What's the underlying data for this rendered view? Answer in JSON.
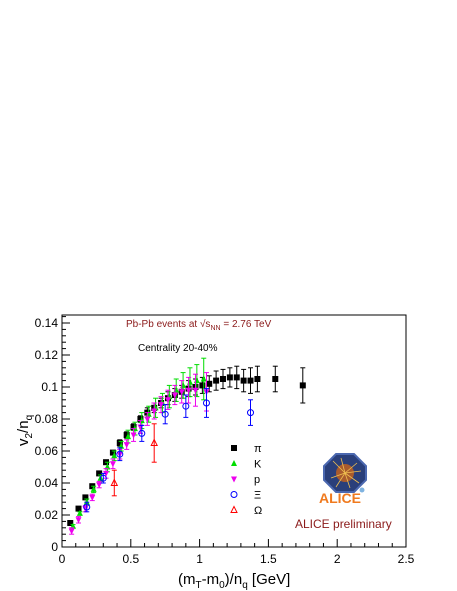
{
  "chart_data": {
    "type": "scatter",
    "title": "",
    "xlabel_parts": [
      "(m",
      "T",
      "-m",
      "0",
      ")/n",
      "q",
      " [GeV]"
    ],
    "ylabel_parts": [
      "v",
      "2",
      "/n",
      "q"
    ],
    "xlim": [
      0,
      2.5
    ],
    "ylim": [
      0,
      0.145
    ],
    "grid": false,
    "legend_position": "lower-right",
    "x_tick_labels": [
      "0",
      "0.5",
      "1",
      "1.5",
      "2",
      "2.5"
    ],
    "x_tick_values": [
      0,
      0.5,
      1,
      1.5,
      2,
      2.5
    ],
    "y_tick_labels": [
      "0",
      "0.02",
      "0.04",
      "0.06",
      "0.08",
      "0.1",
      "0.12",
      "0.14"
    ],
    "y_tick_values": [
      0,
      0.02,
      0.04,
      0.06,
      0.08,
      0.1,
      0.12,
      0.14
    ],
    "annotations": {
      "collision_line": [
        "Pb-Pb events at ",
        "√s",
        "NN",
        " = 2.76 TeV"
      ],
      "centrality": "Centrality 20-40%",
      "preliminary": "ALICE preliminary",
      "logo_text": "ALICE"
    },
    "series": [
      {
        "name": "π",
        "marker": "square",
        "color": "#000000",
        "points": [
          [
            0.06,
            0.015,
            0.001
          ],
          [
            0.12,
            0.024,
            0.001
          ],
          [
            0.17,
            0.031,
            0.001
          ],
          [
            0.22,
            0.038,
            0.001
          ],
          [
            0.27,
            0.046,
            0.001
          ],
          [
            0.32,
            0.053,
            0.001
          ],
          [
            0.37,
            0.059,
            0.001
          ],
          [
            0.42,
            0.065,
            0.002
          ],
          [
            0.47,
            0.07,
            0.002
          ],
          [
            0.52,
            0.075,
            0.002
          ],
          [
            0.57,
            0.08,
            0.002
          ],
          [
            0.62,
            0.084,
            0.003
          ],
          [
            0.67,
            0.087,
            0.003
          ],
          [
            0.72,
            0.09,
            0.003
          ],
          [
            0.77,
            0.093,
            0.004
          ],
          [
            0.82,
            0.095,
            0.004
          ],
          [
            0.87,
            0.097,
            0.004
          ],
          [
            0.92,
            0.099,
            0.005
          ],
          [
            0.97,
            0.1,
            0.005
          ],
          [
            1.02,
            0.101,
            0.005
          ],
          [
            1.07,
            0.102,
            0.005
          ],
          [
            1.12,
            0.104,
            0.006
          ],
          [
            1.17,
            0.105,
            0.006
          ],
          [
            1.22,
            0.106,
            0.006
          ],
          [
            1.27,
            0.106,
            0.007
          ],
          [
            1.32,
            0.104,
            0.007
          ],
          [
            1.37,
            0.104,
            0.008
          ],
          [
            1.42,
            0.105,
            0.008
          ],
          [
            1.55,
            0.105,
            0.008
          ],
          [
            1.75,
            0.101,
            0.011
          ]
        ]
      },
      {
        "name": "K",
        "marker": "triangle-up",
        "color": "#00dd00",
        "points": [
          [
            0.08,
            0.013,
            0.001
          ],
          [
            0.13,
            0.021,
            0.001
          ],
          [
            0.18,
            0.028,
            0.002
          ],
          [
            0.23,
            0.036,
            0.002
          ],
          [
            0.28,
            0.043,
            0.002
          ],
          [
            0.33,
            0.05,
            0.003
          ],
          [
            0.38,
            0.057,
            0.003
          ],
          [
            0.43,
            0.063,
            0.003
          ],
          [
            0.48,
            0.069,
            0.004
          ],
          [
            0.53,
            0.074,
            0.004
          ],
          [
            0.58,
            0.079,
            0.005
          ],
          [
            0.63,
            0.083,
            0.005
          ],
          [
            0.68,
            0.087,
            0.006
          ],
          [
            0.73,
            0.09,
            0.006
          ],
          [
            0.78,
            0.094,
            0.007
          ],
          [
            0.83,
            0.098,
            0.007
          ],
          [
            0.88,
            0.101,
            0.008
          ],
          [
            0.93,
            0.103,
            0.009
          ],
          [
            0.98,
            0.104,
            0.01
          ],
          [
            1.03,
            0.105,
            0.013
          ]
        ]
      },
      {
        "name": "p",
        "marker": "triangle-down",
        "color": "#ee00ee",
        "points": [
          [
            0.07,
            0.01,
            0.002
          ],
          [
            0.12,
            0.017,
            0.002
          ],
          [
            0.17,
            0.024,
            0.002
          ],
          [
            0.22,
            0.031,
            0.002
          ],
          [
            0.27,
            0.039,
            0.002
          ],
          [
            0.32,
            0.046,
            0.003
          ],
          [
            0.37,
            0.052,
            0.003
          ],
          [
            0.42,
            0.058,
            0.003
          ],
          [
            0.47,
            0.064,
            0.003
          ],
          [
            0.52,
            0.07,
            0.004
          ],
          [
            0.57,
            0.075,
            0.004
          ],
          [
            0.62,
            0.08,
            0.004
          ],
          [
            0.67,
            0.085,
            0.005
          ],
          [
            0.72,
            0.089,
            0.005
          ],
          [
            0.77,
            0.092,
            0.006
          ],
          [
            0.82,
            0.095,
            0.006
          ],
          [
            0.87,
            0.097,
            0.007
          ],
          [
            0.92,
            0.098,
            0.008
          ],
          [
            0.97,
            0.098,
            0.01
          ],
          [
            1.05,
            0.097,
            0.012
          ]
        ]
      },
      {
        "name": "Ξ",
        "marker": "circle-open",
        "color": "#0000ff",
        "points": [
          [
            0.18,
            0.025,
            0.003
          ],
          [
            0.3,
            0.043,
            0.003
          ],
          [
            0.42,
            0.058,
            0.004
          ],
          [
            0.58,
            0.071,
            0.005
          ],
          [
            0.75,
            0.083,
            0.006
          ],
          [
            0.9,
            0.088,
            0.007
          ],
          [
            1.05,
            0.09,
            0.009
          ],
          [
            1.37,
            0.084,
            0.008
          ]
        ]
      },
      {
        "name": "Ω",
        "marker": "triangle-up-open",
        "color": "#ff0000",
        "points": [
          [
            0.38,
            0.04,
            0.008
          ],
          [
            0.67,
            0.065,
            0.012
          ]
        ]
      }
    ]
  }
}
